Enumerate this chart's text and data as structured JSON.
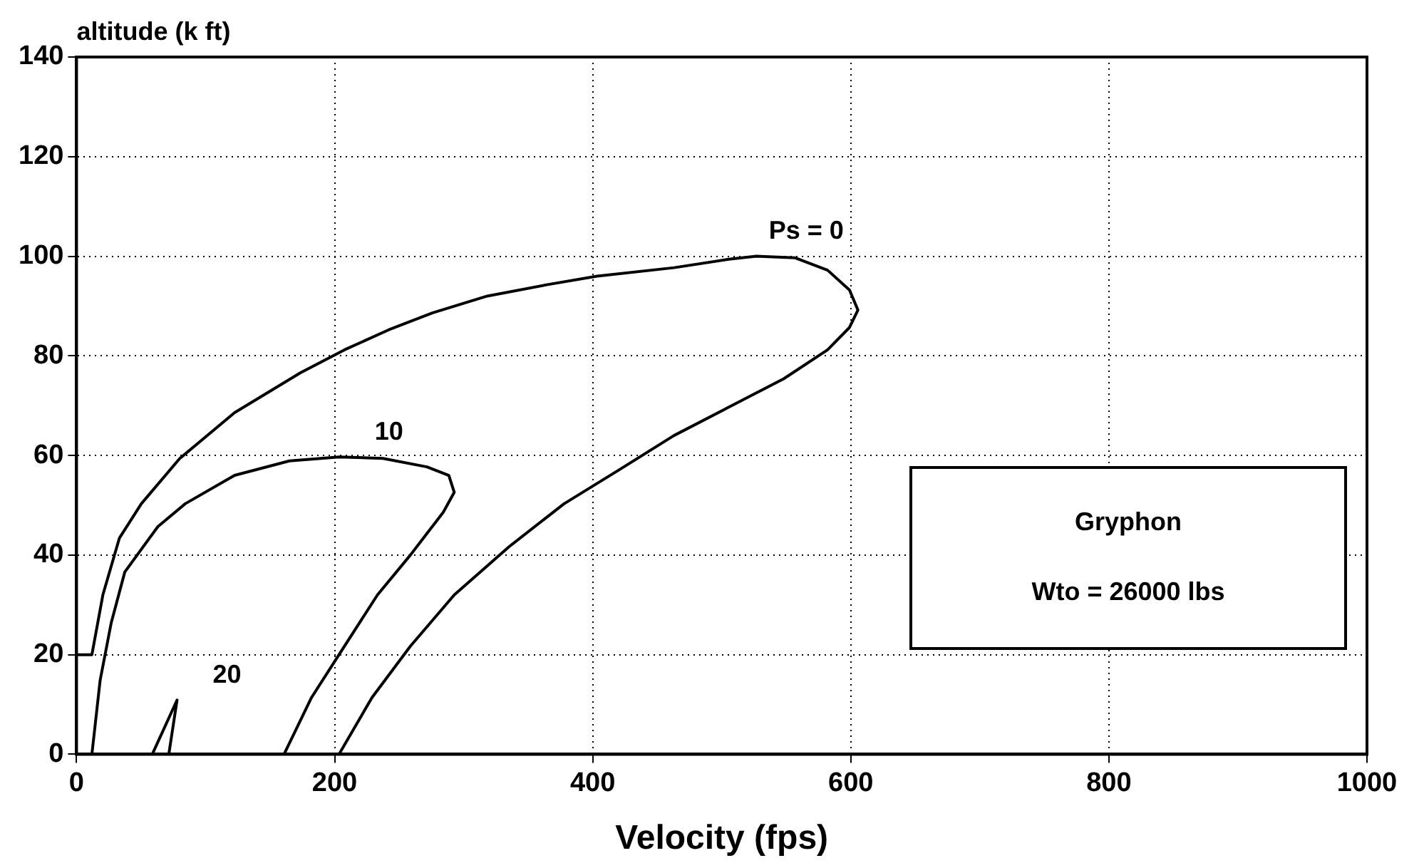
{
  "chart_data": {
    "type": "line",
    "xlabel": "Velocity (fps)",
    "ylabel": "altitude (k ft)",
    "xlim": [
      0,
      1000
    ],
    "xticks": [
      0,
      200,
      400,
      600,
      800,
      1000
    ],
    "ylim": [
      0,
      140
    ],
    "yticks": [
      0,
      20,
      40,
      60,
      80,
      100,
      120,
      140
    ],
    "grid": true,
    "legend": false,
    "marker": "none",
    "line_style": "solid",
    "annotations": [
      "Gryphon",
      "Wto = 26000 lbs"
    ],
    "series": [
      {
        "name": "Ps = 0",
        "color": "#000000",
        "x": [
          1.3,
          11.9,
          20.4,
          33.2,
          50.2,
          80,
          122.5,
          173.6,
          207.6,
          241.7,
          275.7,
          318.3,
          365,
          403.4,
          463,
          505.5,
          526.8,
          556.6,
          582,
          599,
          605.5,
          599,
          582,
          548,
          505.5,
          463,
          420.4,
          377.8,
          335.3,
          292.7,
          258.7,
          229,
          203.4
        ],
        "values": [
          20,
          20,
          32,
          43.4,
          50.3,
          59.4,
          68.6,
          76.6,
          81.2,
          85.2,
          88.6,
          92,
          94.3,
          96,
          97.7,
          99.4,
          100,
          99.7,
          97.2,
          93.2,
          89.2,
          85.7,
          81.2,
          75.4,
          69.7,
          64,
          57.1,
          50.3,
          41.7,
          32,
          21.7,
          11.4,
          0
        ]
      },
      {
        "name": "10",
        "color": "#000000",
        "x": [
          11.9,
          18.3,
          26.8,
          37.4,
          63,
          84.2,
          122.5,
          165,
          203.4,
          237.4,
          271.5,
          288.5,
          292.7,
          284.2,
          258.7,
          233.2,
          203.4,
          182.1,
          160.8
        ],
        "values": [
          0,
          14.9,
          26.3,
          36.6,
          45.7,
          50.3,
          56,
          58.9,
          59.7,
          59.4,
          57.7,
          56,
          52.6,
          48.6,
          40,
          32,
          20,
          11.4,
          0
        ]
      },
      {
        "name": "20",
        "color": "#000000",
        "x": [
          58.7,
          77.9,
          71.5
        ],
        "values": [
          0,
          10.9,
          0
        ]
      }
    ]
  }
}
